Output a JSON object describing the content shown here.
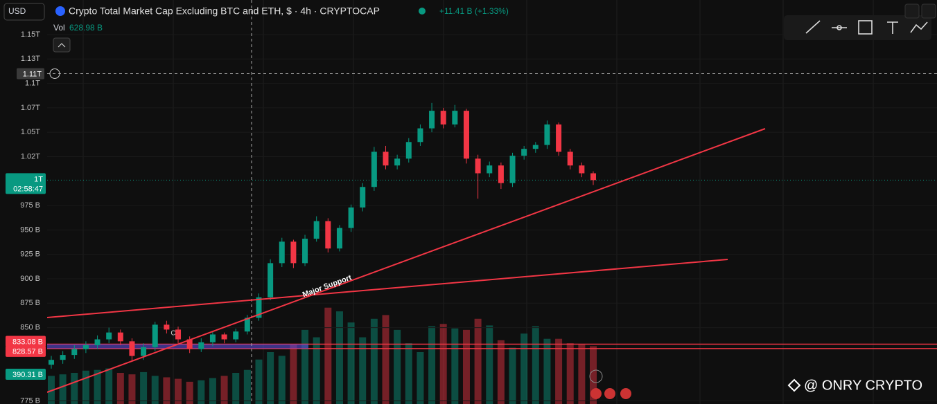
{
  "header": {
    "currency": "USD",
    "title": "Crypto Total Market Cap Excluding BTC and ETH, $ · 4h · CRYPTOCAP",
    "change": "+11.41 B (+1.33%)",
    "volume_label": "Vol",
    "volume": "628.98 B"
  },
  "chart_data": {
    "type": "candlestick",
    "open": [
      812,
      817,
      822,
      828,
      832,
      838,
      845,
      836,
      821,
      830,
      853,
      848,
      838,
      828,
      835,
      843,
      838,
      846,
      860,
      881,
      916,
      938,
      916,
      941,
      959,
      931,
      952,
      973,
      994,
      1030,
      1016,
      1023,
      1040,
      1054,
      1072,
      1058,
      1072,
      1023,
      1008,
      1016,
      998,
      1026,
      1033,
      1037,
      1058,
      1030,
      1016,
      1008
    ],
    "high": [
      821,
      826,
      832,
      836,
      842,
      850,
      848,
      839,
      834,
      856,
      857,
      851,
      841,
      839,
      846,
      845,
      849,
      863,
      885,
      920,
      942,
      940,
      945,
      964,
      962,
      955,
      976,
      998,
      1035,
      1036,
      1027,
      1044,
      1058,
      1080,
      1075,
      1078,
      1074,
      1027,
      1020,
      1019,
      1029,
      1036,
      1040,
      1062,
      1060,
      1033,
      1019,
      1010
    ],
    "low": [
      808,
      813,
      818,
      824,
      828,
      834,
      832,
      815,
      817,
      826,
      844,
      834,
      824,
      825,
      831,
      834,
      835,
      843,
      857,
      878,
      912,
      911,
      913,
      938,
      927,
      928,
      948,
      969,
      990,
      1012,
      1012,
      1019,
      1036,
      1050,
      1054,
      1055,
      1018,
      982,
      1004,
      992,
      994,
      1022,
      1029,
      1033,
      1026,
      1012,
      1004,
      996
    ],
    "close": [
      817,
      822,
      828,
      832,
      838,
      845,
      836,
      821,
      830,
      853,
      848,
      838,
      828,
      835,
      843,
      838,
      846,
      860,
      881,
      916,
      938,
      916,
      941,
      959,
      931,
      952,
      973,
      994,
      1030,
      1016,
      1023,
      1040,
      1054,
      1072,
      1058,
      1072,
      1023,
      1008,
      1016,
      998,
      1026,
      1033,
      1037,
      1058,
      1030,
      1016,
      1008,
      1001
    ],
    "volume": [
      380,
      400,
      420,
      450,
      460,
      480,
      420,
      400,
      430,
      380,
      360,
      340,
      300,
      320,
      350,
      380,
      420,
      460,
      600,
      700,
      650,
      800,
      1000,
      900,
      1300,
      1250,
      1100,
      900,
      1150,
      1200,
      1000,
      820,
      700,
      1050,
      1080,
      1020,
      1000,
      1150,
      1060,
      860,
      760,
      950,
      1050,
      880,
      880,
      820,
      800,
      780
    ],
    "volume_lim": [
      0,
      1400
    ],
    "up_color": "#089981",
    "down_color": "#f23645",
    "ylim": [
      771.8,
      1185.4
    ],
    "yticks": [
      {
        "value": 1150,
        "label": "1.15T"
      },
      {
        "value": 1125,
        "label": "1.13T"
      },
      {
        "value": 1100,
        "label": "1.1T"
      },
      {
        "value": 1075,
        "label": "1.07T"
      },
      {
        "value": 1050,
        "label": "1.05T"
      },
      {
        "value": 1025,
        "label": "1.02T"
      },
      {
        "value": 975,
        "label": "975 B"
      },
      {
        "value": 950,
        "label": "950 B"
      },
      {
        "value": 925,
        "label": "925 B"
      },
      {
        "value": 900,
        "label": "900 B"
      },
      {
        "value": 875,
        "label": "875 B"
      },
      {
        "value": 850,
        "label": "850 B"
      },
      {
        "value": 775,
        "label": "775 B"
      }
    ],
    "crosshair": {
      "value": 1110,
      "label": "1.11T"
    },
    "last_price": {
      "value": 1001,
      "label": "1T",
      "countdown": "02:58:47"
    },
    "levels": [
      {
        "value": 833.08,
        "label": "833.08 B"
      },
      {
        "value": 828.57,
        "label": "828.57 B"
      }
    ],
    "volume_last": "390.31 B",
    "annotations": [
      "Major Support",
      "C"
    ]
  },
  "watermark": "@ ONRY CRYPTO"
}
